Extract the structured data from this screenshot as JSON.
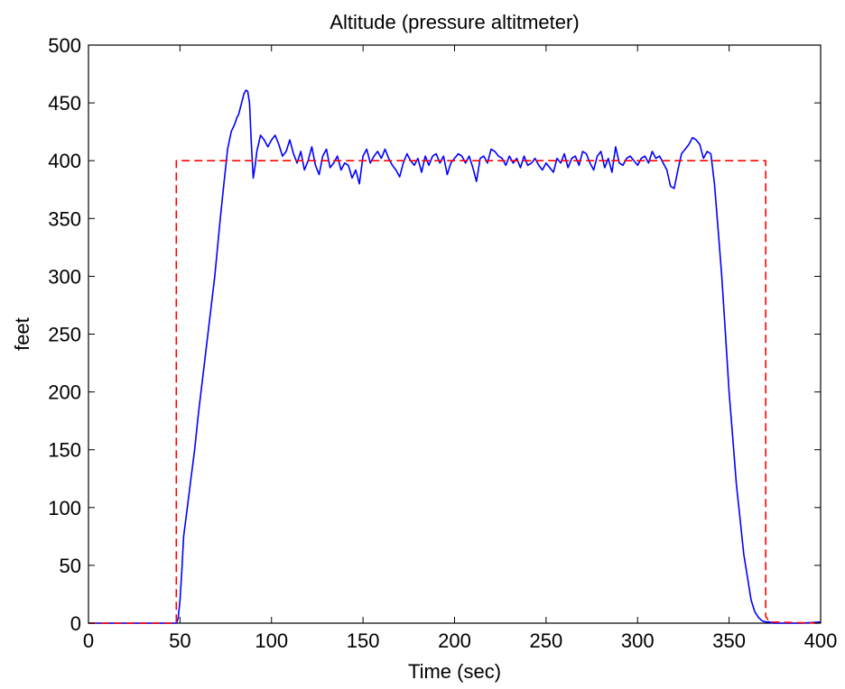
{
  "chart_data": {
    "type": "line",
    "title": "Altitude (pressure altitmeter)",
    "xlabel": "Time (sec)",
    "ylabel": "feet",
    "xlim": [
      0,
      400
    ],
    "ylim": [
      0,
      500
    ],
    "xticks": [
      0,
      50,
      100,
      150,
      200,
      250,
      300,
      350,
      400
    ],
    "yticks": [
      0,
      50,
      100,
      150,
      200,
      250,
      300,
      350,
      400,
      450,
      500
    ],
    "grid": false,
    "legend": "none",
    "series": [
      {
        "style": "solid",
        "color": "#0000ff",
        "x": [
          0,
          10,
          20,
          30,
          40,
          48,
          49,
          50,
          51,
          52,
          54,
          56,
          58,
          60,
          63,
          66,
          69,
          72,
          74,
          76,
          78,
          80,
          81,
          82,
          84,
          85,
          86,
          87,
          88,
          89,
          90,
          91,
          92,
          94,
          96,
          98,
          100,
          102,
          104,
          106,
          108,
          110,
          112,
          114,
          116,
          118,
          120,
          122,
          124,
          126,
          128,
          130,
          132,
          134,
          136,
          138,
          140,
          142,
          144,
          146,
          148,
          150,
          152,
          154,
          156,
          158,
          160,
          162,
          164,
          166,
          168,
          170,
          172,
          174,
          176,
          178,
          180,
          182,
          184,
          186,
          188,
          190,
          192,
          194,
          196,
          198,
          200,
          202,
          204,
          206,
          208,
          210,
          212,
          214,
          216,
          218,
          220,
          222,
          224,
          226,
          228,
          230,
          232,
          234,
          236,
          238,
          240,
          242,
          244,
          246,
          248,
          250,
          252,
          254,
          256,
          258,
          260,
          262,
          264,
          266,
          268,
          270,
          272,
          274,
          276,
          278,
          280,
          282,
          284,
          286,
          288,
          290,
          292,
          294,
          296,
          298,
          300,
          302,
          304,
          306,
          308,
          310,
          312,
          314,
          316,
          318,
          320,
          322,
          324,
          326,
          328,
          330,
          332,
          334,
          336,
          338,
          340,
          342,
          344,
          346,
          348,
          350,
          352,
          354,
          356,
          358,
          360,
          362,
          364,
          366,
          368,
          370,
          372,
          374,
          376,
          380,
          390,
          400
        ],
        "y": [
          0,
          0,
          0,
          0,
          0,
          0,
          4,
          20,
          45,
          75,
          100,
          125,
          150,
          180,
          220,
          260,
          300,
          350,
          380,
          410,
          425,
          432,
          437,
          440,
          452,
          458,
          461,
          460,
          450,
          415,
          385,
          395,
          408,
          422,
          418,
          412,
          418,
          422,
          414,
          404,
          408,
          418,
          406,
          398,
          408,
          392,
          400,
          412,
          396,
          388,
          404,
          410,
          394,
          398,
          404,
          392,
          398,
          396,
          385,
          392,
          380,
          404,
          410,
          398,
          404,
          408,
          402,
          410,
          402,
          396,
          392,
          386,
          398,
          406,
          400,
          396,
          402,
          390,
          404,
          396,
          404,
          406,
          398,
          404,
          388,
          398,
          402,
          406,
          404,
          398,
          404,
          394,
          382,
          402,
          404,
          398,
          410,
          408,
          404,
          402,
          396,
          404,
          398,
          402,
          394,
          404,
          396,
          398,
          402,
          396,
          392,
          398,
          394,
          390,
          402,
          398,
          406,
          394,
          402,
          404,
          396,
          408,
          406,
          398,
          392,
          404,
          408,
          394,
          402,
          390,
          412,
          398,
          396,
          402,
          404,
          400,
          396,
          402,
          404,
          398,
          408,
          402,
          404,
          398,
          392,
          378,
          376,
          392,
          406,
          410,
          414,
          420,
          418,
          414,
          402,
          408,
          406,
          380,
          340,
          300,
          250,
          200,
          160,
          120,
          90,
          60,
          40,
          20,
          10,
          5,
          2,
          1,
          1,
          0,
          0,
          0,
          0,
          1
        ],
        "note": ""
      },
      {
        "style": "dashed",
        "color": "#ff0000",
        "x": [
          0,
          48,
          48,
          370,
          370,
          372,
          400
        ],
        "y": [
          0,
          0,
          400,
          400,
          6,
          1,
          0
        ]
      }
    ]
  }
}
